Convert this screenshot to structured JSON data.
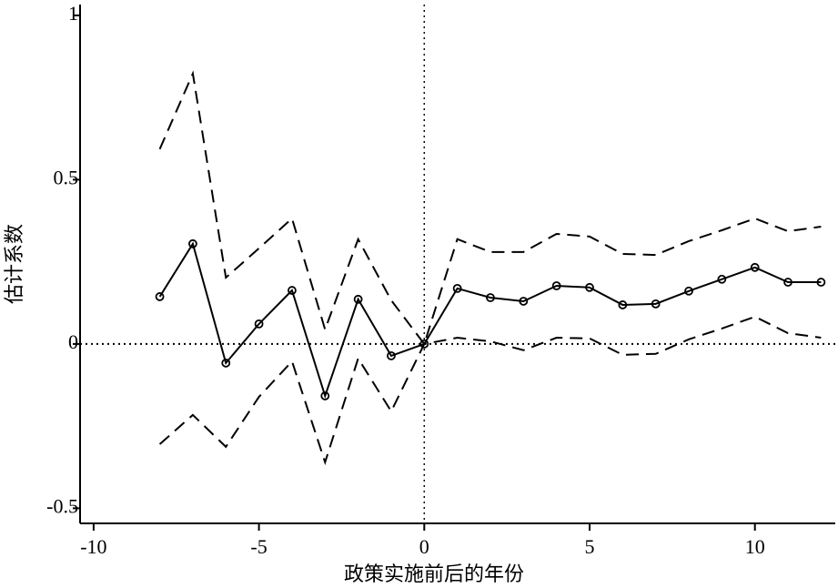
{
  "chart_data": {
    "type": "line",
    "x_label": "政策实施前后的年份",
    "y_label": "估计系数",
    "x": [
      -8,
      -7,
      -6,
      -5,
      -4,
      -3,
      -2,
      -1,
      0,
      1,
      2,
      3,
      4,
      5,
      6,
      7,
      8,
      9,
      10,
      11,
      12
    ],
    "series": [
      {
        "color": "#000000",
        "dash": "solid",
        "marker": "circle",
        "values": [
          0.144,
          0.305,
          -0.058,
          0.061,
          0.163,
          -0.158,
          0.136,
          -0.036,
          0,
          0.169,
          0.141,
          0.13,
          0.177,
          0.172,
          0.119,
          0.122,
          0.161,
          0.197,
          0.233,
          0.188,
          0.188
        ]
      },
      {
        "color": "#000000",
        "dash": "dashed",
        "marker": "none",
        "values": [
          0.593,
          0.823,
          0.202,
          0.291,
          0.382,
          0.044,
          0.319,
          0.133,
          0,
          0.319,
          0.28,
          0.28,
          0.335,
          0.327,
          0.274,
          0.271,
          0.313,
          0.346,
          0.382,
          0.343,
          0.357
        ]
      },
      {
        "color": "#000000",
        "dash": "dashed",
        "marker": "none",
        "values": [
          -0.305,
          -0.216,
          -0.313,
          -0.161,
          -0.053,
          -0.36,
          -0.044,
          -0.205,
          0,
          0.019,
          0.008,
          -0.019,
          0.019,
          0.017,
          -0.033,
          -0.03,
          0.014,
          0.047,
          0.083,
          0.033,
          0.019
        ]
      }
    ],
    "xlim": [
      -10.41,
      12.43
    ],
    "ylim": [
      -0.546,
      1.033
    ],
    "xticks": [
      -10,
      -5,
      0,
      5,
      10
    ],
    "yticks": [
      -0.5,
      0,
      0.5,
      1
    ],
    "reference_lines": {
      "x": 0,
      "y": 0
    }
  }
}
